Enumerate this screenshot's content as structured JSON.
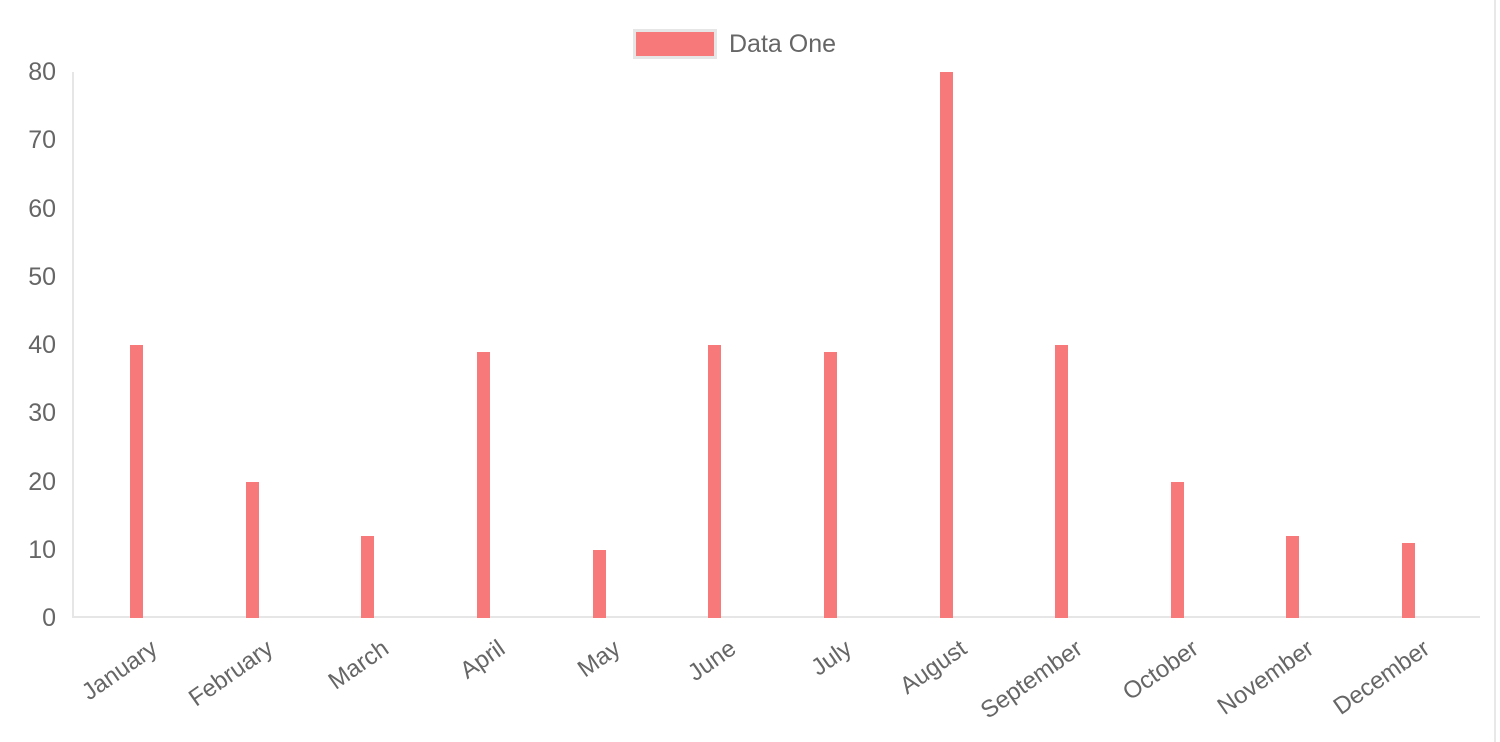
{
  "legend": {
    "label": "Data One",
    "swatch_color": "#f87979",
    "swatch_border_color": "#e6e6e6",
    "text_color": "#666666"
  },
  "axes": {
    "line_color": "#e6e6e6",
    "tick_text_color": "#666666",
    "right_edge_line_color": "#e8e8e8"
  },
  "chart_data": {
    "type": "bar",
    "title": "",
    "categories": [
      "January",
      "February",
      "March",
      "April",
      "May",
      "June",
      "July",
      "August",
      "September",
      "October",
      "November",
      "December"
    ],
    "series": [
      {
        "name": "Data One",
        "color": "#f87979",
        "values": [
          40,
          20,
          12,
          39,
          10,
          40,
          39,
          80,
          40,
          20,
          12,
          11
        ]
      }
    ],
    "xlabel": "",
    "ylabel": "",
    "ylim": [
      0,
      80
    ],
    "yticks": [
      0,
      10,
      20,
      30,
      40,
      50,
      60,
      70,
      80
    ],
    "grid": false,
    "legend_position": "top",
    "x_tick_rotation_deg": -35
  }
}
